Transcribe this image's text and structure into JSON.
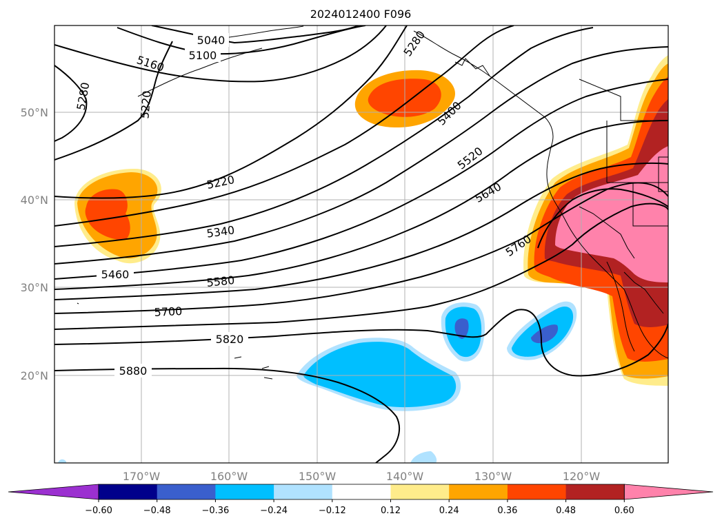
{
  "title": "2024012400 F096",
  "lat_labels": [
    "50°N",
    "40°N",
    "30°N",
    "20°N"
  ],
  "lon_labels": [
    "170°W",
    "160°W",
    "150°W",
    "140°W",
    "130°W",
    "120°W"
  ],
  "contour_labels": [
    "5040",
    "5100",
    "5160",
    "5280",
    "5220",
    "5280",
    "5220",
    "5340",
    "5400",
    "5460",
    "5520",
    "5580",
    "5640",
    "5700",
    "5760",
    "5820",
    "5880"
  ],
  "colorbar": {
    "ticks": [
      "−0.60",
      "−0.48",
      "−0.36",
      "−0.24",
      "−0.12",
      "0.12",
      "0.24",
      "0.36",
      "0.48",
      "0.60"
    ],
    "colors": [
      "#9b30d0",
      "#00008b",
      "#3a5fcd",
      "#00bfff",
      "#b0e2ff",
      "#ffffff",
      "#ffec8b",
      "#ffa500",
      "#ff4500",
      "#b22222",
      "#ff82ab"
    ]
  },
  "map_extent": {
    "lon_min": -180,
    "lon_max": -110,
    "lat_min": 10,
    "lat_max": 60
  }
}
